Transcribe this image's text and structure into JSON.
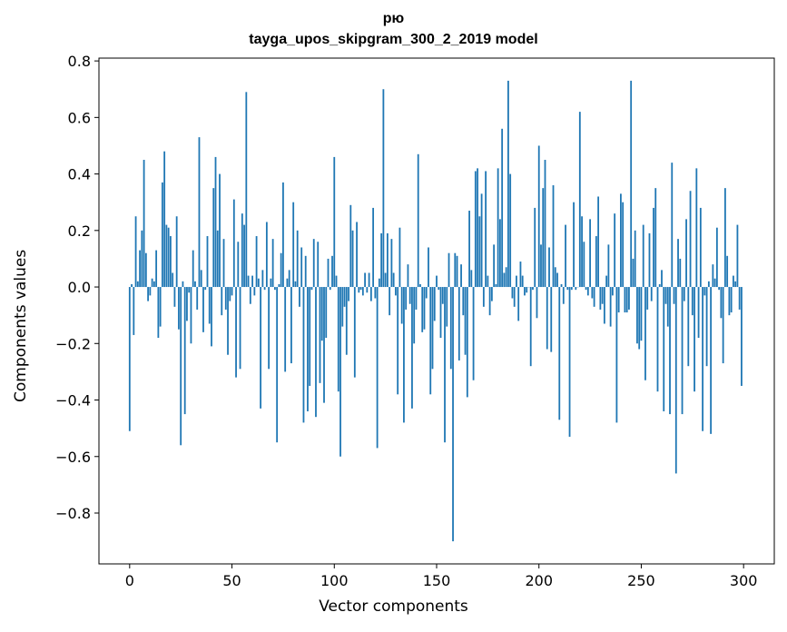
{
  "chart_data": {
    "type": "bar",
    "title_line1": "рю",
    "title_line2": "tayga_upos_skipgram_300_2_2019 model",
    "xlabel": "Vector components",
    "ylabel": "Components values",
    "xlim": [
      -15,
      315
    ],
    "ylim": [
      -0.98,
      0.81
    ],
    "xticks": [
      0,
      50,
      100,
      150,
      200,
      250,
      300
    ],
    "xtick_labels": [
      "0",
      "50",
      "100",
      "150",
      "200",
      "250",
      "300"
    ],
    "yticks": [
      -0.8,
      -0.6,
      -0.4,
      -0.2,
      0.0,
      0.2,
      0.4,
      0.6,
      0.8
    ],
    "ytick_labels": [
      "−0.8",
      "−0.6",
      "−0.4",
      "−0.2",
      "0.0",
      "0.2",
      "0.4",
      "0.6",
      "0.8"
    ],
    "bar_color": "#1f77b4",
    "values": [
      -0.51,
      0.01,
      -0.17,
      0.25,
      0.02,
      0.13,
      0.2,
      0.45,
      0.12,
      -0.05,
      -0.03,
      0.03,
      0.02,
      0.13,
      -0.18,
      -0.14,
      0.37,
      0.48,
      0.22,
      0.21,
      0.18,
      0.05,
      -0.07,
      0.25,
      -0.15,
      -0.56,
      0.02,
      -0.45,
      -0.12,
      -0.02,
      -0.2,
      0.13,
      0.02,
      -0.08,
      0.53,
      0.06,
      -0.16,
      -0.01,
      0.18,
      -0.13,
      -0.21,
      0.35,
      0.46,
      0.2,
      0.4,
      -0.1,
      0.17,
      -0.08,
      -0.24,
      -0.05,
      -0.03,
      0.31,
      -0.32,
      0.16,
      -0.29,
      0.26,
      0.22,
      0.69,
      0.04,
      -0.06,
      0.04,
      -0.03,
      0.18,
      0.03,
      -0.43,
      0.06,
      -0.01,
      0.23,
      -0.29,
      0.03,
      0.17,
      -0.01,
      -0.55,
      0.01,
      0.12,
      0.37,
      -0.3,
      0.03,
      0.06,
      -0.27,
      0.3,
      0.02,
      0.2,
      -0.07,
      0.14,
      -0.48,
      0.11,
      -0.44,
      -0.35,
      -0.01,
      0.17,
      -0.46,
      0.16,
      -0.34,
      -0.19,
      -0.41,
      -0.18,
      0.1,
      -0.01,
      0.11,
      0.46,
      0.04,
      -0.37,
      -0.6,
      -0.14,
      -0.07,
      -0.24,
      -0.05,
      0.29,
      0.2,
      -0.32,
      0.23,
      -0.02,
      -0.01,
      -0.03,
      0.05,
      -0.02,
      0.05,
      -0.05,
      0.28,
      -0.04,
      -0.57,
      0.03,
      0.19,
      0.7,
      0.05,
      0.19,
      -0.1,
      0.17,
      0.05,
      -0.03,
      -0.38,
      0.21,
      -0.13,
      -0.48,
      -0.08,
      0.08,
      -0.06,
      -0.43,
      -0.2,
      -0.08,
      0.47,
      0.01,
      -0.16,
      -0.15,
      -0.04,
      0.14,
      -0.38,
      -0.29,
      -0.12,
      0.04,
      -0.01,
      -0.18,
      -0.06,
      -0.55,
      -0.14,
      0.12,
      -0.29,
      -0.9,
      0.12,
      0.11,
      -0.26,
      0.08,
      -0.1,
      -0.24,
      -0.39,
      0.27,
      0.06,
      -0.33,
      0.41,
      0.42,
      0.25,
      0.33,
      -0.07,
      0.41,
      0.04,
      -0.1,
      -0.05,
      0.15,
      0.01,
      0.42,
      0.24,
      0.56,
      0.05,
      0.07,
      0.73,
      0.4,
      -0.04,
      -0.07,
      0.04,
      -0.12,
      0.09,
      0.04,
      -0.03,
      -0.02,
      0.0,
      -0.28,
      -0.01,
      0.28,
      -0.11,
      0.5,
      0.15,
      0.35,
      0.45,
      -0.22,
      0.14,
      -0.23,
      0.36,
      0.07,
      0.05,
      -0.47,
      0.01,
      -0.06,
      0.22,
      -0.01,
      -0.53,
      -0.01,
      0.3,
      -0.01,
      0.0,
      0.62,
      0.25,
      0.16,
      -0.01,
      -0.03,
      0.24,
      -0.04,
      -0.07,
      0.18,
      0.32,
      -0.08,
      -0.06,
      -0.13,
      0.04,
      0.15,
      -0.14,
      -0.03,
      0.26,
      -0.48,
      -0.09,
      0.33,
      0.3,
      -0.09,
      -0.09,
      -0.08,
      0.73,
      0.1,
      0.2,
      -0.2,
      -0.22,
      -0.19,
      0.22,
      -0.33,
      -0.08,
      0.19,
      -0.05,
      0.28,
      0.35,
      -0.37,
      0.01,
      0.06,
      -0.44,
      -0.06,
      -0.14,
      -0.45,
      0.44,
      -0.06,
      -0.66,
      0.17,
      0.1,
      -0.45,
      -0.05,
      0.24,
      -0.28,
      0.34,
      -0.1,
      -0.37,
      0.42,
      -0.18,
      0.28,
      -0.51,
      -0.03,
      -0.28,
      0.02,
      -0.52,
      0.08,
      0.03,
      0.21,
      -0.01,
      -0.11,
      -0.27,
      0.35,
      0.11,
      -0.1,
      -0.09,
      0.04,
      0.02,
      0.22,
      -0.08,
      -0.35
    ]
  }
}
